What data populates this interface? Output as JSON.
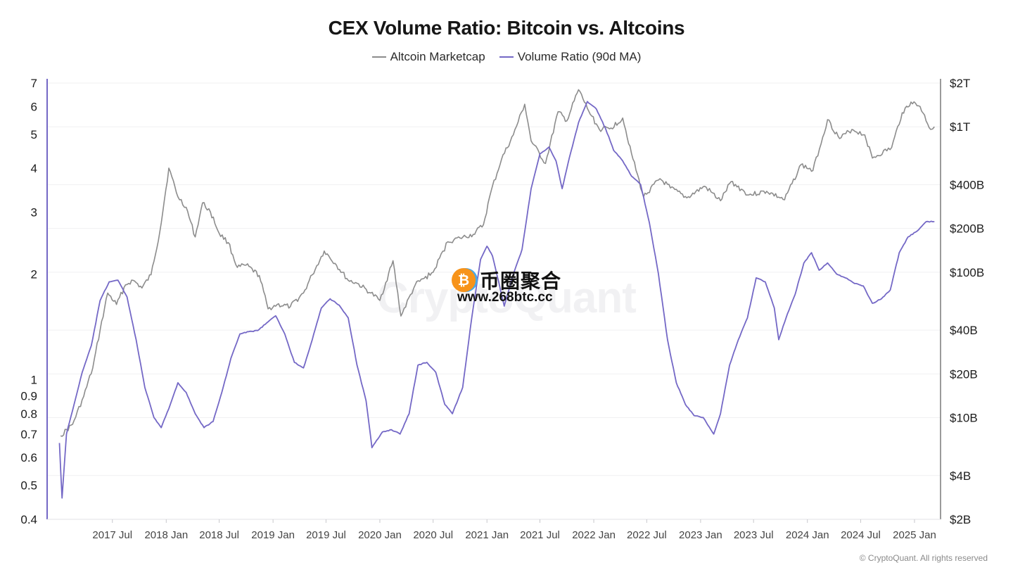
{
  "header": {
    "title": "CEX Volume Ratio: Bitcoin vs. Altcoins"
  },
  "legend": [
    {
      "label": "Altcoin Marketcap",
      "color": "#8c8c8c"
    },
    {
      "label": "Volume Ratio (90d MA)",
      "color": "#7468c6"
    }
  ],
  "watermarks": {
    "cryptoquant": "CryptoQuant",
    "site_name": "币圈聚合",
    "site_url": "www.268btc.cc",
    "coin_glyph": "₿"
  },
  "footer": {
    "copyright": "© CryptoQuant. All rights reserved"
  },
  "chart_data": {
    "type": "line",
    "title": "CEX Volume Ratio: Bitcoin vs. Altcoins",
    "grid": true,
    "legend_position": "top-center",
    "x_axis": {
      "type": "date",
      "range": [
        "2016-11-20",
        "2025-03-31"
      ],
      "tick_labels": [
        "2017 Jul",
        "2018 Jan",
        "2018 Jul",
        "2019 Jan",
        "2019 Jul",
        "2020 Jan",
        "2020 Jul",
        "2021 Jan",
        "2021 Jul",
        "2022 Jan",
        "2022 Jul",
        "2023 Jan",
        "2023 Jul",
        "2024 Jan",
        "2024 Jul",
        "2025 Jan"
      ],
      "tick_dates": [
        "2017-07-01",
        "2018-01-01",
        "2018-07-01",
        "2019-01-01",
        "2019-07-01",
        "2020-01-01",
        "2020-07-01",
        "2021-01-01",
        "2021-07-01",
        "2022-01-01",
        "2022-07-01",
        "2023-01-01",
        "2023-07-01",
        "2024-01-01",
        "2024-07-01",
        "2025-01-01"
      ]
    },
    "y_left": {
      "scale": "log",
      "range": [
        0.4,
        7
      ],
      "ticks": [
        0.4,
        0.5,
        0.6,
        0.7,
        0.8,
        0.9,
        1,
        2,
        3,
        4,
        5,
        6,
        7
      ],
      "tick_labels": [
        "0.4",
        "0.5",
        "0.6",
        "0.7",
        "0.8",
        "0.9",
        "1",
        "2",
        "3",
        "4",
        "5",
        "6",
        "7"
      ],
      "series": "Volume Ratio (90d MA)"
    },
    "y_right": {
      "scale": "log",
      "unit": "USD billions",
      "range": [
        2,
        2000
      ],
      "ticks": [
        2,
        4,
        10,
        20,
        40,
        100,
        200,
        400,
        1000,
        2000
      ],
      "tick_labels": [
        "$2B",
        "$4B",
        "$10B",
        "$20B",
        "$40B",
        "$100B",
        "$200B",
        "$400B",
        "$1T",
        "$2T"
      ],
      "series": "Altcoin Marketcap"
    },
    "series": [
      {
        "name": "Altcoin Marketcap",
        "axis": "right",
        "color": "#8c8c8c",
        "points": [
          [
            "2017-01-05",
            7.5
          ],
          [
            "2017-02-15",
            9
          ],
          [
            "2017-03-25",
            14
          ],
          [
            "2017-04-25",
            22
          ],
          [
            "2017-05-20",
            40
          ],
          [
            "2017-06-15",
            72
          ],
          [
            "2017-07-15",
            60
          ],
          [
            "2017-08-15",
            82
          ],
          [
            "2017-09-10",
            88
          ],
          [
            "2017-10-10",
            78
          ],
          [
            "2017-11-10",
            96
          ],
          [
            "2017-12-10",
            190
          ],
          [
            "2018-01-10",
            520
          ],
          [
            "2018-02-10",
            330
          ],
          [
            "2018-03-10",
            280
          ],
          [
            "2018-04-10",
            175
          ],
          [
            "2018-05-05",
            300
          ],
          [
            "2018-06-01",
            260
          ],
          [
            "2018-07-01",
            185
          ],
          [
            "2018-08-01",
            160
          ],
          [
            "2018-09-01",
            108
          ],
          [
            "2018-10-01",
            112
          ],
          [
            "2018-11-15",
            95
          ],
          [
            "2018-12-15",
            56
          ],
          [
            "2019-01-15",
            60
          ],
          [
            "2019-03-01",
            58
          ],
          [
            "2019-04-15",
            72
          ],
          [
            "2019-05-15",
            96
          ],
          [
            "2019-06-25",
            140
          ],
          [
            "2019-08-01",
            115
          ],
          [
            "2019-09-15",
            88
          ],
          [
            "2019-10-15",
            84
          ],
          [
            "2019-12-01",
            72
          ],
          [
            "2020-01-01",
            64
          ],
          [
            "2020-02-15",
            120
          ],
          [
            "2020-03-13",
            50
          ],
          [
            "2020-05-01",
            82
          ],
          [
            "2020-07-01",
            100
          ],
          [
            "2020-08-20",
            162
          ],
          [
            "2020-10-01",
            172
          ],
          [
            "2020-11-15",
            182
          ],
          [
            "2020-12-20",
            212
          ],
          [
            "2021-01-15",
            360
          ],
          [
            "2021-02-20",
            600
          ],
          [
            "2021-04-01",
            880
          ],
          [
            "2021-05-10",
            1430
          ],
          [
            "2021-06-01",
            800
          ],
          [
            "2021-07-20",
            560
          ],
          [
            "2021-09-01",
            1270
          ],
          [
            "2021-10-01",
            1100
          ],
          [
            "2021-11-10",
            1800
          ],
          [
            "2021-12-15",
            1280
          ],
          [
            "2022-01-20",
            960
          ],
          [
            "2022-03-01",
            980
          ],
          [
            "2022-04-10",
            1150
          ],
          [
            "2022-05-15",
            600
          ],
          [
            "2022-06-20",
            330
          ],
          [
            "2022-08-15",
            440
          ],
          [
            "2022-09-20",
            380
          ],
          [
            "2022-11-15",
            325
          ],
          [
            "2023-01-15",
            390
          ],
          [
            "2023-03-10",
            310
          ],
          [
            "2023-04-15",
            420
          ],
          [
            "2023-06-15",
            340
          ],
          [
            "2023-08-15",
            360
          ],
          [
            "2023-10-15",
            315
          ],
          [
            "2023-12-10",
            550
          ],
          [
            "2024-01-20",
            500
          ],
          [
            "2024-03-10",
            1120
          ],
          [
            "2024-04-20",
            830
          ],
          [
            "2024-06-01",
            960
          ],
          [
            "2024-07-15",
            880
          ],
          [
            "2024-08-10",
            610
          ],
          [
            "2024-10-15",
            720
          ],
          [
            "2024-11-20",
            1250
          ],
          [
            "2024-12-20",
            1480
          ],
          [
            "2025-01-20",
            1380
          ],
          [
            "2025-02-25",
            960
          ],
          [
            "2025-03-10",
            1000
          ]
        ]
      },
      {
        "name": "Volume Ratio (90d MA)",
        "axis": "left",
        "color": "#7468c6",
        "points": [
          [
            "2017-01-01",
            0.66
          ],
          [
            "2017-01-10",
            0.46
          ],
          [
            "2017-01-25",
            0.7
          ],
          [
            "2017-02-20",
            0.85
          ],
          [
            "2017-03-20",
            1.05
          ],
          [
            "2017-04-20",
            1.25
          ],
          [
            "2017-05-20",
            1.68
          ],
          [
            "2017-06-20",
            1.9
          ],
          [
            "2017-07-20",
            1.92
          ],
          [
            "2017-08-20",
            1.72
          ],
          [
            "2017-09-20",
            1.3
          ],
          [
            "2017-10-20",
            0.95
          ],
          [
            "2017-11-20",
            0.78
          ],
          [
            "2017-12-15",
            0.73
          ],
          [
            "2018-01-15",
            0.85
          ],
          [
            "2018-02-10",
            0.98
          ],
          [
            "2018-03-10",
            0.92
          ],
          [
            "2018-04-10",
            0.8
          ],
          [
            "2018-05-10",
            0.73
          ],
          [
            "2018-06-10",
            0.76
          ],
          [
            "2018-07-10",
            0.92
          ],
          [
            "2018-08-10",
            1.15
          ],
          [
            "2018-09-10",
            1.35
          ],
          [
            "2018-10-10",
            1.37
          ],
          [
            "2018-11-10",
            1.38
          ],
          [
            "2018-12-10",
            1.45
          ],
          [
            "2019-01-10",
            1.52
          ],
          [
            "2019-02-10",
            1.35
          ],
          [
            "2019-03-15",
            1.12
          ],
          [
            "2019-04-15",
            1.08
          ],
          [
            "2019-05-15",
            1.3
          ],
          [
            "2019-06-15",
            1.6
          ],
          [
            "2019-07-15",
            1.7
          ],
          [
            "2019-08-15",
            1.63
          ],
          [
            "2019-09-15",
            1.5
          ],
          [
            "2019-10-15",
            1.1
          ],
          [
            "2019-11-15",
            0.87
          ],
          [
            "2019-12-05",
            0.64
          ],
          [
            "2020-01-10",
            0.71
          ],
          [
            "2020-02-10",
            0.72
          ],
          [
            "2020-03-10",
            0.7
          ],
          [
            "2020-04-10",
            0.8
          ],
          [
            "2020-05-10",
            1.1
          ],
          [
            "2020-06-10",
            1.12
          ],
          [
            "2020-07-10",
            1.05
          ],
          [
            "2020-08-10",
            0.85
          ],
          [
            "2020-09-05",
            0.8
          ],
          [
            "2020-10-10",
            0.95
          ],
          [
            "2020-11-10",
            1.5
          ],
          [
            "2020-12-10",
            2.2
          ],
          [
            "2021-01-01",
            2.4
          ],
          [
            "2021-01-20",
            2.25
          ],
          [
            "2021-02-10",
            1.9
          ],
          [
            "2021-03-01",
            1.62
          ],
          [
            "2021-04-01",
            2.0
          ],
          [
            "2021-05-01",
            2.35
          ],
          [
            "2021-06-01",
            3.5
          ],
          [
            "2021-07-01",
            4.4
          ],
          [
            "2021-08-01",
            4.6
          ],
          [
            "2021-08-25",
            4.2
          ],
          [
            "2021-09-15",
            3.5
          ],
          [
            "2021-10-10",
            4.3
          ],
          [
            "2021-11-10",
            5.4
          ],
          [
            "2021-12-10",
            6.2
          ],
          [
            "2022-01-10",
            5.9
          ],
          [
            "2022-02-10",
            5.2
          ],
          [
            "2022-03-10",
            4.5
          ],
          [
            "2022-04-10",
            4.2
          ],
          [
            "2022-05-10",
            3.8
          ],
          [
            "2022-06-10",
            3.6
          ],
          [
            "2022-07-10",
            2.8
          ],
          [
            "2022-08-10",
            2.0
          ],
          [
            "2022-09-10",
            1.3
          ],
          [
            "2022-10-10",
            0.98
          ],
          [
            "2022-11-10",
            0.85
          ],
          [
            "2022-12-10",
            0.79
          ],
          [
            "2023-01-10",
            0.78
          ],
          [
            "2023-02-15",
            0.7
          ],
          [
            "2023-03-10",
            0.8
          ],
          [
            "2023-04-10",
            1.1
          ],
          [
            "2023-05-10",
            1.3
          ],
          [
            "2023-06-10",
            1.5
          ],
          [
            "2023-07-10",
            1.95
          ],
          [
            "2023-08-10",
            1.9
          ],
          [
            "2023-09-10",
            1.6
          ],
          [
            "2023-09-25",
            1.3
          ],
          [
            "2023-10-20",
            1.5
          ],
          [
            "2023-11-20",
            1.75
          ],
          [
            "2023-12-20",
            2.15
          ],
          [
            "2024-01-15",
            2.3
          ],
          [
            "2024-02-10",
            2.05
          ],
          [
            "2024-03-10",
            2.15
          ],
          [
            "2024-04-10",
            2.0
          ],
          [
            "2024-05-10",
            1.95
          ],
          [
            "2024-06-10",
            1.88
          ],
          [
            "2024-07-10",
            1.85
          ],
          [
            "2024-08-10",
            1.65
          ],
          [
            "2024-09-10",
            1.7
          ],
          [
            "2024-10-10",
            1.8
          ],
          [
            "2024-11-10",
            2.3
          ],
          [
            "2024-12-10",
            2.55
          ],
          [
            "2025-01-10",
            2.65
          ],
          [
            "2025-02-10",
            2.82
          ],
          [
            "2025-03-10",
            2.82
          ]
        ]
      }
    ]
  }
}
